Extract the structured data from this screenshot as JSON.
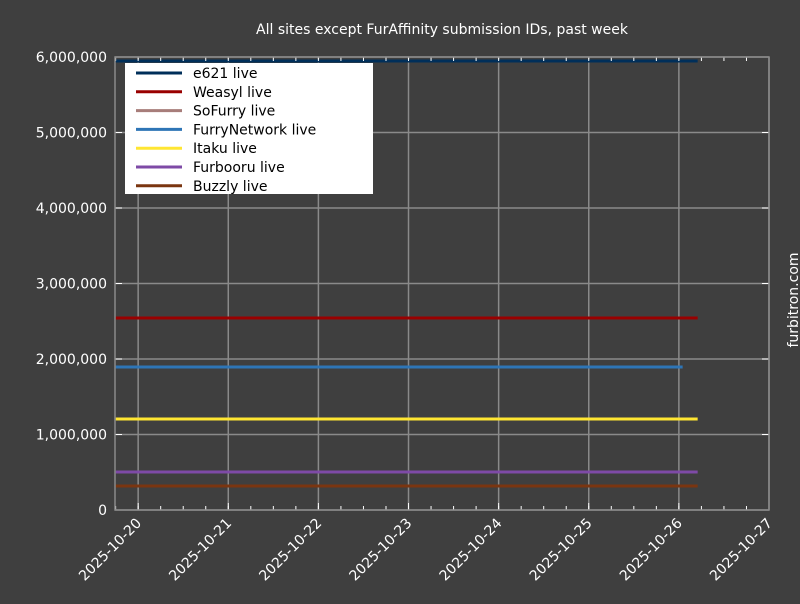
{
  "chart_data": {
    "type": "line",
    "title": "All sites except FurAffinity submission IDs, past week",
    "side_label": "furbitron.com",
    "xlabel": "",
    "ylabel": "",
    "xlim": [
      "2025-10-19T17:50",
      "2025-10-27T00:00"
    ],
    "ylim": [
      0,
      6000000
    ],
    "grid": true,
    "legend_position": "top-left",
    "x_ticks": [
      "2025-10-20",
      "2025-10-21",
      "2025-10-22",
      "2025-10-23",
      "2025-10-24",
      "2025-10-25",
      "2025-10-26",
      "2025-10-27"
    ],
    "y_ticks": [
      0,
      1000000,
      2000000,
      3000000,
      4000000,
      5000000,
      6000000
    ],
    "y_tick_labels": [
      "0",
      "1,000,000",
      "2,000,000",
      "3,000,000",
      "4,000,000",
      "5,000,000",
      "6,000,000"
    ],
    "background_color": "#3f3f3f",
    "series": [
      {
        "name": "e621 live",
        "color": "#002f5a",
        "x": [
          "2025-10-19T18:00",
          "2025-10-26T05:00"
        ],
        "y": [
          5947000,
          5947000
        ]
      },
      {
        "name": "Weasyl live",
        "color": "#990000",
        "x": [
          "2025-10-19T18:00",
          "2025-10-26T05:00"
        ],
        "y": [
          2543000,
          2543000
        ]
      },
      {
        "name": "SoFurry live",
        "color": "#a77d7a",
        "x": [],
        "y": []
      },
      {
        "name": "FurryNetwork live",
        "color": "#2e75b6",
        "x": [
          "2025-10-19T18:00",
          "2025-10-26T01:00"
        ],
        "y": [
          1894000,
          1894000
        ]
      },
      {
        "name": "Itaku live",
        "color": "#ffe632",
        "x": [
          "2025-10-19T18:00",
          "2025-10-26T05:00"
        ],
        "y": [
          1205000,
          1205000
        ]
      },
      {
        "name": "Furbooru live",
        "color": "#7e4aa6",
        "x": [
          "2025-10-19T18:00",
          "2025-10-26T05:00"
        ],
        "y": [
          503000,
          503000
        ]
      },
      {
        "name": "Buzzly live",
        "color": "#7a3510",
        "x": [
          "2025-10-19T18:00",
          "2025-10-26T05:00"
        ],
        "y": [
          318000,
          318000
        ]
      }
    ]
  }
}
